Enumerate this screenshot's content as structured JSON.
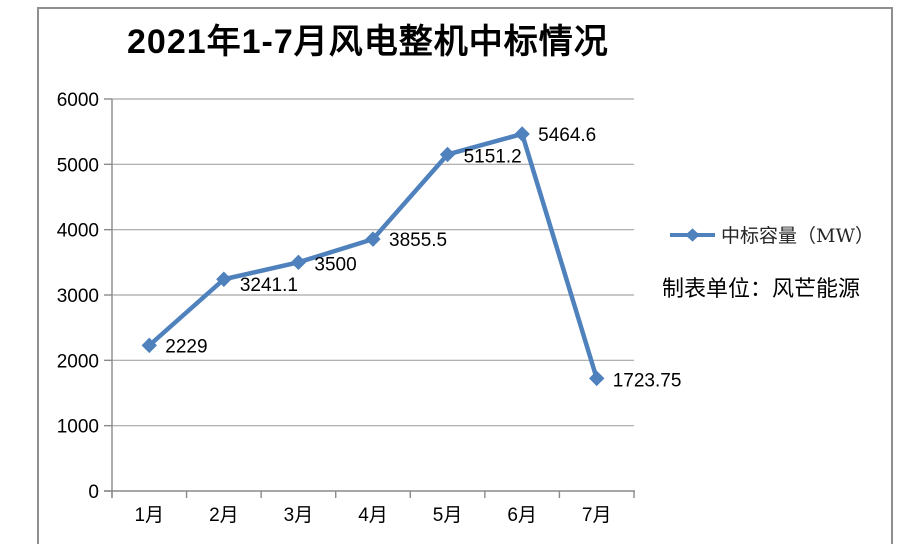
{
  "title": {
    "text": "2021年1-7月风电整机中标情况"
  },
  "legend": {
    "label": "中标容量（MW）"
  },
  "note": {
    "text": "制表单位：风芒能源"
  },
  "colors": {
    "series_line": "#4F81BD",
    "marker_fill": "#4F81BD",
    "gridline": "#a6a6a6",
    "axis": "#8a8a8a",
    "label_text": "#000000",
    "frame_border": "#8f8f8f"
  },
  "chart_data": {
    "type": "line",
    "title": "2021年1-7月风电整机中标情况",
    "categories": [
      "1月",
      "2月",
      "3月",
      "4月",
      "5月",
      "6月",
      "7月"
    ],
    "series": [
      {
        "name": "中标容量（MW）",
        "values": [
          2229,
          3241.1,
          3500,
          3855.5,
          5151.2,
          5464.6,
          1723.75
        ]
      }
    ],
    "data_labels": [
      "2229",
      "3241.1",
      "3500",
      "3855.5",
      "5151.2",
      "5464.6",
      "1723.75"
    ],
    "xlabel": "",
    "ylabel": "",
    "ylim": [
      0,
      6000
    ],
    "ytick_interval": 1000,
    "ytick_labels": [
      "0",
      "1000",
      "2000",
      "3000",
      "4000",
      "5000",
      "6000"
    ],
    "grid": "horizontal",
    "legend_position": "right",
    "marker": "diamond",
    "annotation": "制表单位：风芒能源"
  }
}
